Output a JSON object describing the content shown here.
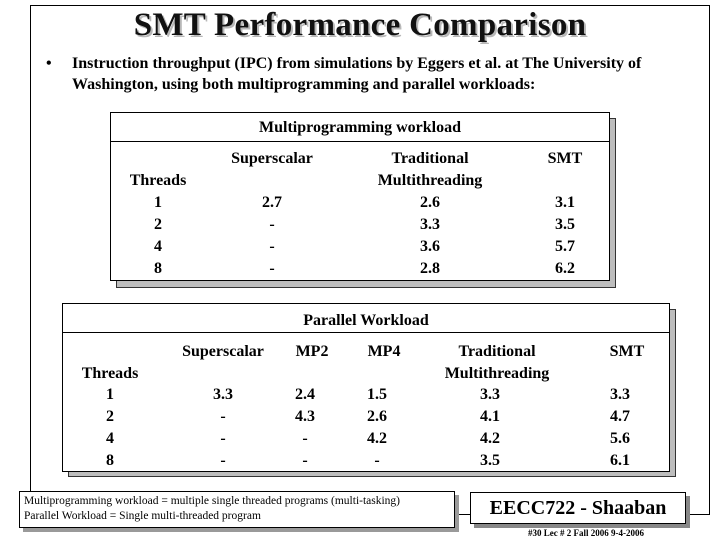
{
  "title": "SMT Performance Comparison",
  "bullet": "•",
  "intro": "Instruction throughput (IPC) from simulations by Eggers et al.  at The University of Washington, using both multiprogramming and parallel workloads:",
  "multi": {
    "heading": "Multiprogramming  workload",
    "col_superscalar": "Superscalar",
    "col_traditional_1": "Traditional",
    "col_traditional_2": "Multithreading",
    "col_smt": "SMT",
    "threads_label": "Threads",
    "threads": [
      "1",
      "2",
      "4",
      "8"
    ],
    "superscalar": [
      "2.7",
      "-",
      "-",
      "-"
    ],
    "traditional": [
      "2.6",
      "3.3",
      "3.6",
      "2.8"
    ],
    "smt": [
      "3.1",
      "3.5",
      "5.7",
      "6.2"
    ]
  },
  "parallel": {
    "heading": "Parallel  Workload",
    "col_superscalar": "Superscalar",
    "col_mp2": "MP2",
    "col_mp4": "MP4",
    "col_traditional_1": "Traditional",
    "col_traditional_2": "Multithreading",
    "col_smt": "SMT",
    "threads_label": "Threads",
    "threads": [
      "1",
      "2",
      "4",
      "8"
    ],
    "superscalar": [
      "3.3",
      "-",
      "-",
      "-"
    ],
    "mp2": [
      "2.4",
      "4.3",
      "-",
      "-"
    ],
    "mp4": [
      "1.5",
      "2.6",
      "4.2",
      "-"
    ],
    "traditional": [
      "3.3",
      "4.1",
      "4.2",
      "3.5"
    ],
    "smt": [
      "3.3",
      "4.7",
      "5.6",
      "6.1"
    ]
  },
  "note_line1": "Multiprogramming  workload = multiple single threaded programs (multi-tasking)",
  "note_line2": "Parallel  Workload = Single multi-threaded program",
  "brand": "EECC722 - Shaaban",
  "footer": "#30   Lec # 2   Fall 2006  9-4-2006"
}
